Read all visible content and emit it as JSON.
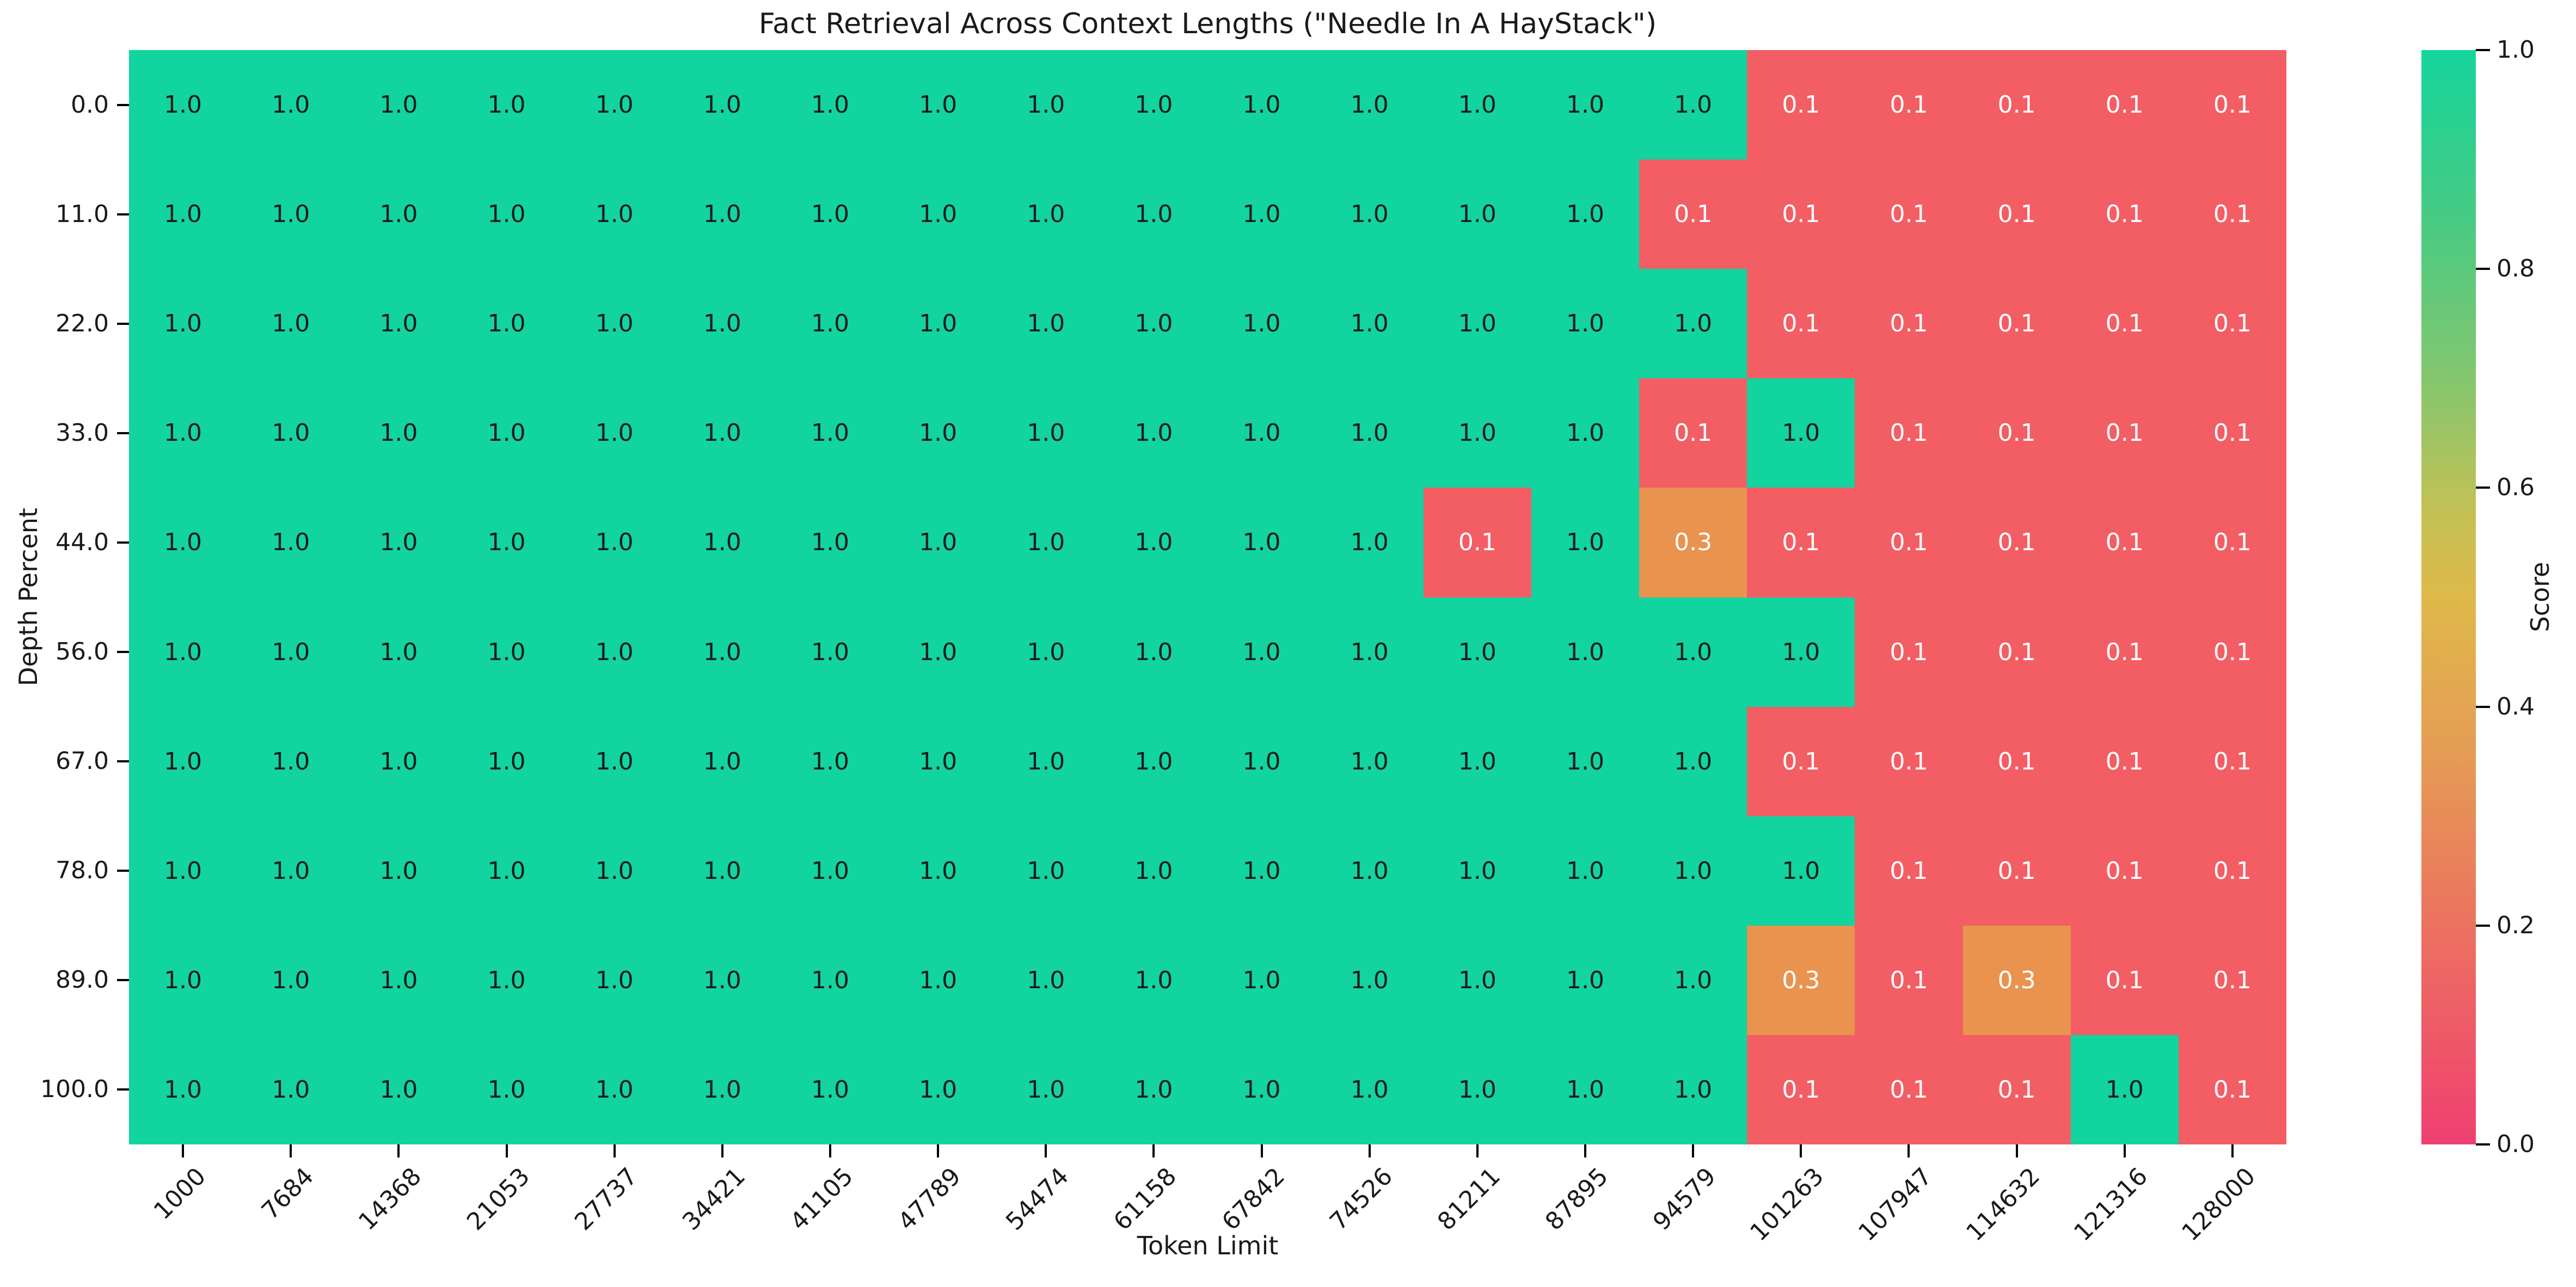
{
  "title": "Fact Retrieval Across Context Lengths (\"Needle In A HayStack\")",
  "chart_data": {
    "type": "heatmap",
    "title": "Fact Retrieval Across Context Lengths (\"Needle In A HayStack\")",
    "xlabel": "Token Limit",
    "ylabel": "Depth Percent",
    "x_labels": [
      "1000",
      "7684",
      "14368",
      "21053",
      "27737",
      "34421",
      "41105",
      "47789",
      "54474",
      "61158",
      "67842",
      "74526",
      "81211",
      "87895",
      "94579",
      "101263",
      "107947",
      "114632",
      "121316",
      "128000"
    ],
    "y_labels": [
      "0.0",
      "11.0",
      "22.0",
      "33.0",
      "44.0",
      "56.0",
      "67.0",
      "78.0",
      "89.0",
      "100.0"
    ],
    "values": [
      [
        1.0,
        1.0,
        1.0,
        1.0,
        1.0,
        1.0,
        1.0,
        1.0,
        1.0,
        1.0,
        1.0,
        1.0,
        1.0,
        1.0,
        1.0,
        0.1,
        0.1,
        0.1,
        0.1,
        0.1
      ],
      [
        1.0,
        1.0,
        1.0,
        1.0,
        1.0,
        1.0,
        1.0,
        1.0,
        1.0,
        1.0,
        1.0,
        1.0,
        1.0,
        1.0,
        0.1,
        0.1,
        0.1,
        0.1,
        0.1,
        0.1
      ],
      [
        1.0,
        1.0,
        1.0,
        1.0,
        1.0,
        1.0,
        1.0,
        1.0,
        1.0,
        1.0,
        1.0,
        1.0,
        1.0,
        1.0,
        1.0,
        0.1,
        0.1,
        0.1,
        0.1,
        0.1
      ],
      [
        1.0,
        1.0,
        1.0,
        1.0,
        1.0,
        1.0,
        1.0,
        1.0,
        1.0,
        1.0,
        1.0,
        1.0,
        1.0,
        1.0,
        0.1,
        1.0,
        0.1,
        0.1,
        0.1,
        0.1
      ],
      [
        1.0,
        1.0,
        1.0,
        1.0,
        1.0,
        1.0,
        1.0,
        1.0,
        1.0,
        1.0,
        1.0,
        1.0,
        0.1,
        1.0,
        0.3,
        0.1,
        0.1,
        0.1,
        0.1,
        0.1
      ],
      [
        1.0,
        1.0,
        1.0,
        1.0,
        1.0,
        1.0,
        1.0,
        1.0,
        1.0,
        1.0,
        1.0,
        1.0,
        1.0,
        1.0,
        1.0,
        1.0,
        0.1,
        0.1,
        0.1,
        0.1
      ],
      [
        1.0,
        1.0,
        1.0,
        1.0,
        1.0,
        1.0,
        1.0,
        1.0,
        1.0,
        1.0,
        1.0,
        1.0,
        1.0,
        1.0,
        1.0,
        0.1,
        0.1,
        0.1,
        0.1,
        0.1
      ],
      [
        1.0,
        1.0,
        1.0,
        1.0,
        1.0,
        1.0,
        1.0,
        1.0,
        1.0,
        1.0,
        1.0,
        1.0,
        1.0,
        1.0,
        1.0,
        1.0,
        0.1,
        0.1,
        0.1,
        0.1
      ],
      [
        1.0,
        1.0,
        1.0,
        1.0,
        1.0,
        1.0,
        1.0,
        1.0,
        1.0,
        1.0,
        1.0,
        1.0,
        1.0,
        1.0,
        1.0,
        0.3,
        0.1,
        0.3,
        0.1,
        0.1
      ],
      [
        1.0,
        1.0,
        1.0,
        1.0,
        1.0,
        1.0,
        1.0,
        1.0,
        1.0,
        1.0,
        1.0,
        1.0,
        1.0,
        1.0,
        1.0,
        0.1,
        0.1,
        0.1,
        1.0,
        0.1
      ]
    ],
    "value_colors": {
      "1.0": "#11D49E",
      "0.3": "#E9934F",
      "0.1": "#F25E64"
    },
    "annotation_text_colors": {
      "high": "#1c1c1c",
      "low": "#ffffff"
    },
    "colorbar": {
      "label": "Score",
      "ticks": [
        "1.0",
        "0.8",
        "0.6",
        "0.4",
        "0.2",
        "0.0"
      ],
      "gradient": [
        {
          "pos": 0,
          "color": "#15D49D"
        },
        {
          "pos": 15,
          "color": "#46CB83"
        },
        {
          "pos": 30,
          "color": "#84C66E"
        },
        {
          "pos": 42,
          "color": "#C2C155"
        },
        {
          "pos": 50,
          "color": "#DFB94A"
        },
        {
          "pos": 65,
          "color": "#E59A55"
        },
        {
          "pos": 80,
          "color": "#EC7260"
        },
        {
          "pos": 95,
          "color": "#EF4C6C"
        },
        {
          "pos": 100,
          "color": "#EE3F71"
        }
      ]
    },
    "axis_ranges": {
      "score_min": 0.0,
      "score_max": 1.0
    },
    "grid": false,
    "legend_position": "right-colorbar",
    "background": "#ffffff"
  }
}
